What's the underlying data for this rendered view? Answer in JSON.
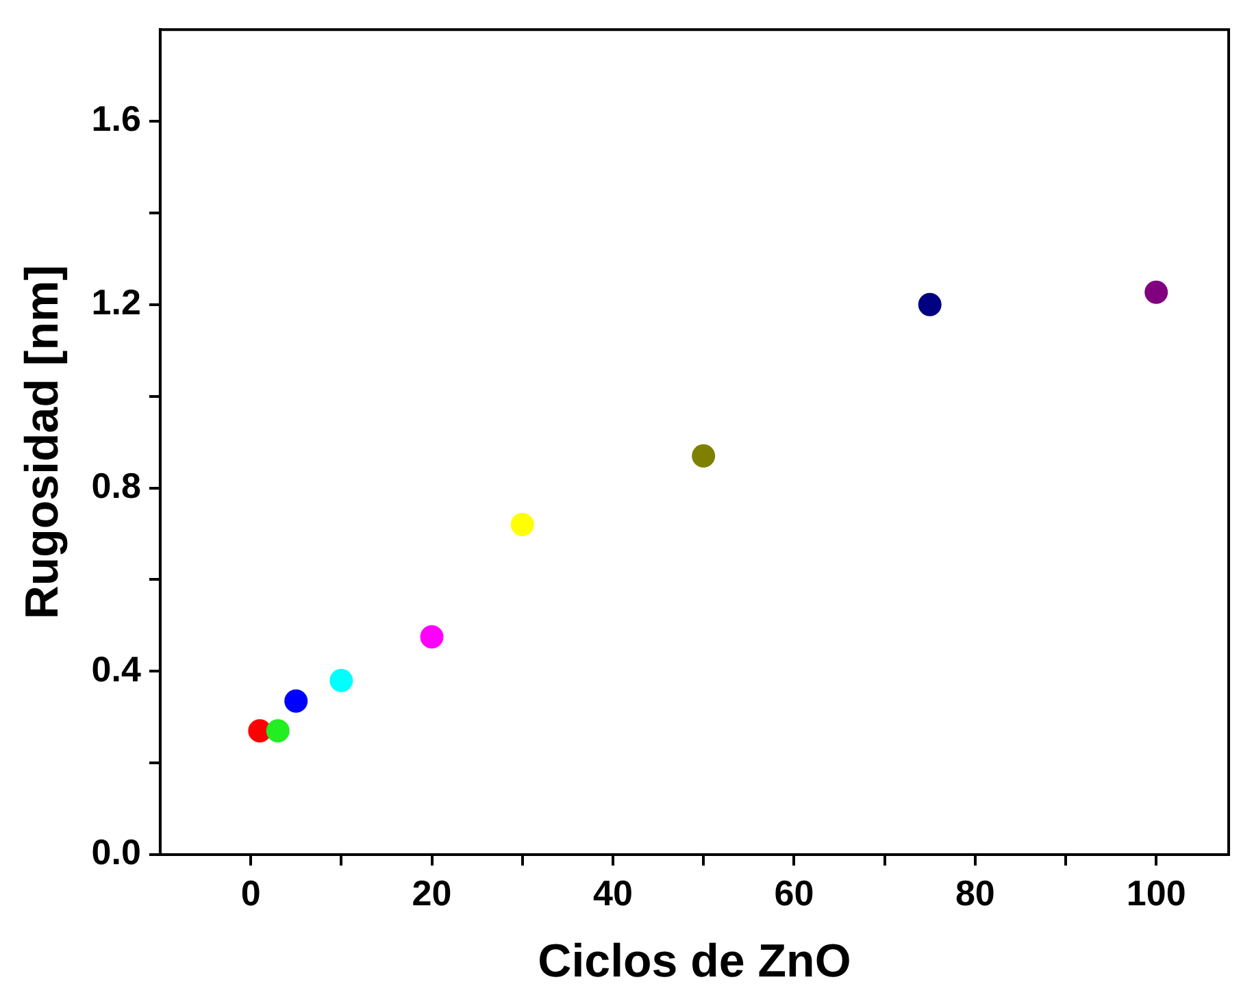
{
  "chart_data": {
    "type": "scatter",
    "xlabel": "Ciclos de ZnO",
    "ylabel": "Rugosidad [nm]",
    "x": [
      1,
      3,
      5,
      10,
      20,
      30,
      50,
      75,
      100
    ],
    "values": [
      0.27,
      0.27,
      0.335,
      0.38,
      0.475,
      0.72,
      0.87,
      1.2,
      1.227
    ],
    "colors": [
      "#ff0000",
      "#22ee22",
      "#0000ff",
      "#00ffff",
      "#ff00ff",
      "#ffff00",
      "#808000",
      "#000080",
      "#800080"
    ],
    "xlim": [
      -10,
      108
    ],
    "ylim": [
      0,
      1.8
    ],
    "xticks": [
      0,
      {
        "value": 10,
        "label": null
      },
      20,
      {
        "value": 30,
        "label": null
      },
      40,
      {
        "value": 50,
        "label": null
      },
      60,
      {
        "value": 70,
        "label": null
      },
      80,
      {
        "value": 90,
        "label": null
      },
      100
    ],
    "yticks": [
      {
        "value": 0,
        "label": "0.0"
      },
      {
        "value": 0.2,
        "label": null
      },
      0.4,
      {
        "value": 0.6,
        "label": null
      },
      0.8,
      {
        "value": 1,
        "label": null
      },
      1.2,
      {
        "value": 1.4,
        "label": null
      },
      1.6
    ],
    "marker": "circle",
    "grid": false,
    "legend": false
  }
}
